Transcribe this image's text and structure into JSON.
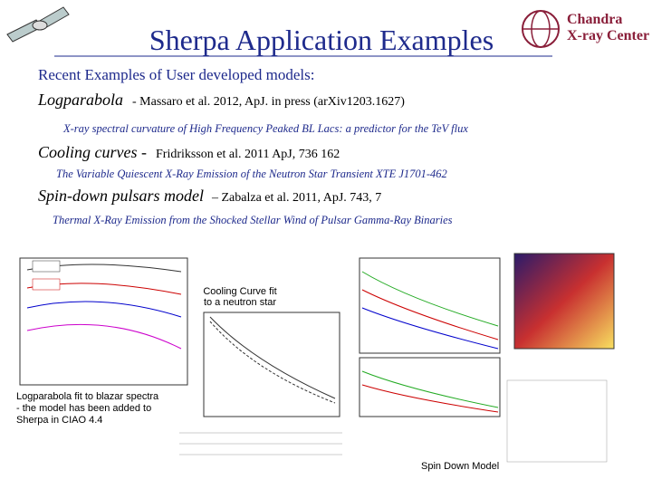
{
  "header": {
    "title": "Sherpa Application Examples",
    "logo_line1": "Chandra",
    "logo_line2": "X-ray Center"
  },
  "intro": "Recent Examples of User developed models:",
  "examples": [
    {
      "model": "Logparabola",
      "reference": "- Massaro et al. 2012, ApJ. in press (arXiv1203.1627)",
      "paper": "X-ray spectral curvature of High Frequency Peaked BL Lacs: a predictor for the TeV flux"
    },
    {
      "model": "Cooling curves -",
      "reference": "Fridriksson et al. 2011 ApJ, 736 162",
      "paper": "The Variable Quiescent X-Ray Emission of the Neutron Star Transient XTE J1701-462"
    },
    {
      "model": "Spin-down pulsars model",
      "reference": "– Zabalza et al. 2011, ApJ. 743, 7",
      "paper": "Thermal X-Ray Emission from the Shocked Stellar Wind of Pulsar Gamma-Ray Binaries"
    }
  ],
  "captions": {
    "cooling": [
      "Cooling Curve fit",
      "to a neutron star"
    ],
    "logparabola": [
      "Logparabola fit to blazar spectra",
      "- the model has been added to",
      "Sherpa in CIAO 4.4"
    ],
    "spindown": "Spin Down Model"
  }
}
